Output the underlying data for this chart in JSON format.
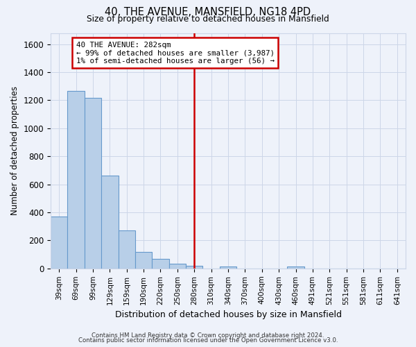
{
  "title": "40, THE AVENUE, MANSFIELD, NG18 4PD",
  "subtitle": "Size of property relative to detached houses in Mansfield",
  "xlabel": "Distribution of detached houses by size in Mansfield",
  "ylabel": "Number of detached properties",
  "bar_labels": [
    "39sqm",
    "69sqm",
    "99sqm",
    "129sqm",
    "159sqm",
    "190sqm",
    "220sqm",
    "250sqm",
    "280sqm",
    "310sqm",
    "340sqm",
    "370sqm",
    "400sqm",
    "430sqm",
    "460sqm",
    "491sqm",
    "521sqm",
    "551sqm",
    "581sqm",
    "611sqm",
    "641sqm"
  ],
  "bar_values": [
    370,
    1265,
    1215,
    665,
    270,
    120,
    70,
    35,
    20,
    0,
    15,
    0,
    0,
    0,
    15,
    0,
    0,
    0,
    0,
    0,
    0
  ],
  "bar_color": "#b8cfe8",
  "bar_edge_color": "#6699cc",
  "vline_index": 8,
  "vline_color": "#cc0000",
  "annotation_text": "40 THE AVENUE: 282sqm\n← 99% of detached houses are smaller (3,987)\n1% of semi-detached houses are larger (56) →",
  "annotation_box_color": "#ffffff",
  "annotation_box_edge_color": "#cc0000",
  "ylim": [
    0,
    1680
  ],
  "yticks": [
    0,
    200,
    400,
    600,
    800,
    1000,
    1200,
    1400,
    1600
  ],
  "grid_color": "#ccd6e8",
  "bg_color": "#eef2fa",
  "footer1": "Contains HM Land Registry data © Crown copyright and database right 2024.",
  "footer2": "Contains public sector information licensed under the Open Government Licence v3.0."
}
